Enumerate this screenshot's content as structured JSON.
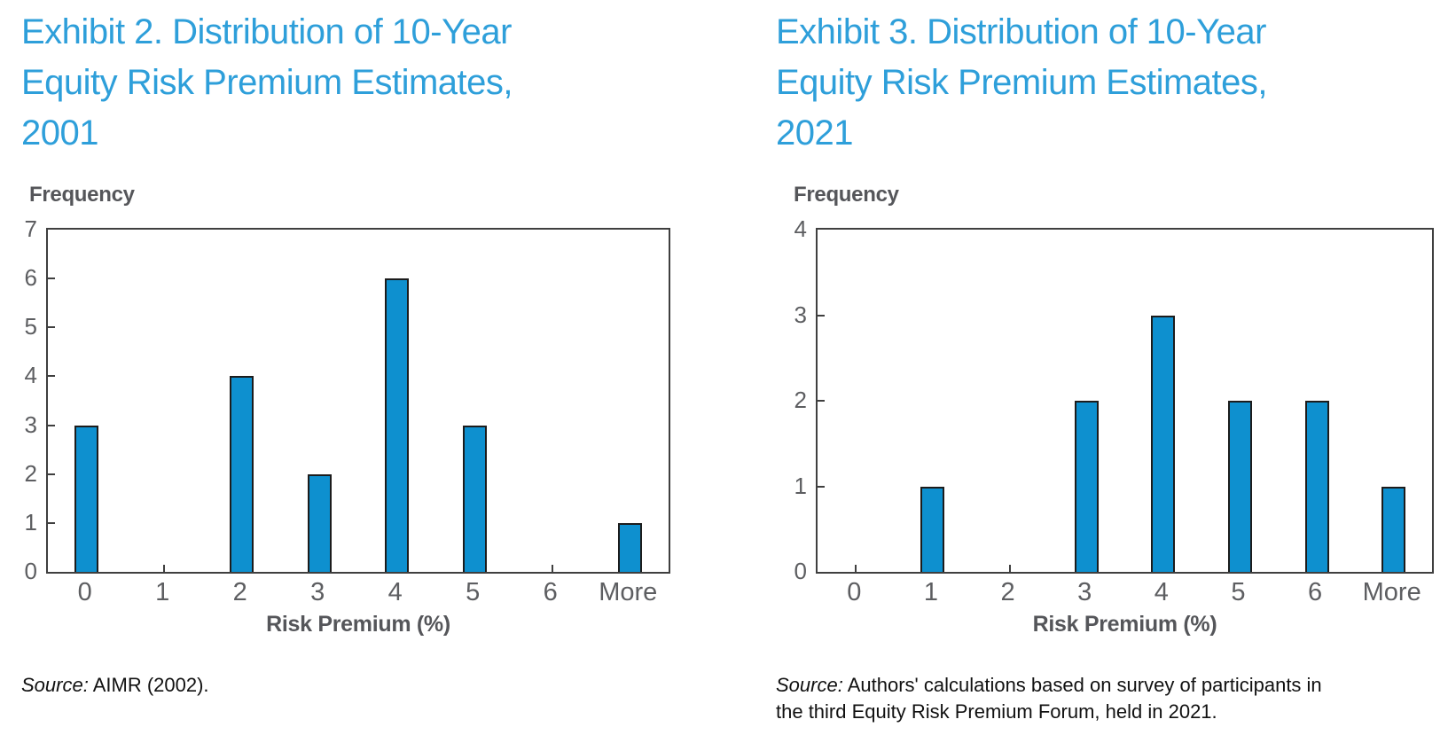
{
  "colors": {
    "title_blue": "#2E9FDA",
    "bar_fill": "#0E90CF",
    "bar_stroke": "#1C1C1C",
    "axis_color": "#3F3F3F",
    "tick_label_gray": "#5D5E61",
    "axis_title_gray": "#55565A",
    "source_text_color": "#111111"
  },
  "chart_data": [
    {
      "type": "bar",
      "title": "Exhibit 2. Distribution of 10-Year Equity Risk Premium Estimates, 2001",
      "ylabel": "Frequency",
      "xlabel": "Risk Premium (%)",
      "categories": [
        "0",
        "1",
        "2",
        "3",
        "4",
        "5",
        "6",
        "More"
      ],
      "values": [
        3,
        0,
        4,
        2,
        6,
        3,
        0,
        1
      ],
      "ylim": [
        0,
        7
      ],
      "ytick_step": 1,
      "grid": "off",
      "legend": "none",
      "source_prefix": "Source:",
      "source_text": " AIMR (2002)."
    },
    {
      "type": "bar",
      "title": "Exhibit 3. Distribution of 10-Year Equity Risk Premium Estimates, 2021",
      "ylabel": "Frequency",
      "xlabel": "Risk Premium (%)",
      "categories": [
        "0",
        "1",
        "2",
        "3",
        "4",
        "5",
        "6",
        "More"
      ],
      "values": [
        0,
        1,
        0,
        2,
        3,
        2,
        2,
        1
      ],
      "ylim": [
        0,
        4
      ],
      "ytick_step": 1,
      "grid": "off",
      "legend": "none",
      "source_prefix": "Source:",
      "source_text": " Authors' calculations based on survey of participants in the third Equity Risk Premium Forum, held in 2021."
    }
  ]
}
